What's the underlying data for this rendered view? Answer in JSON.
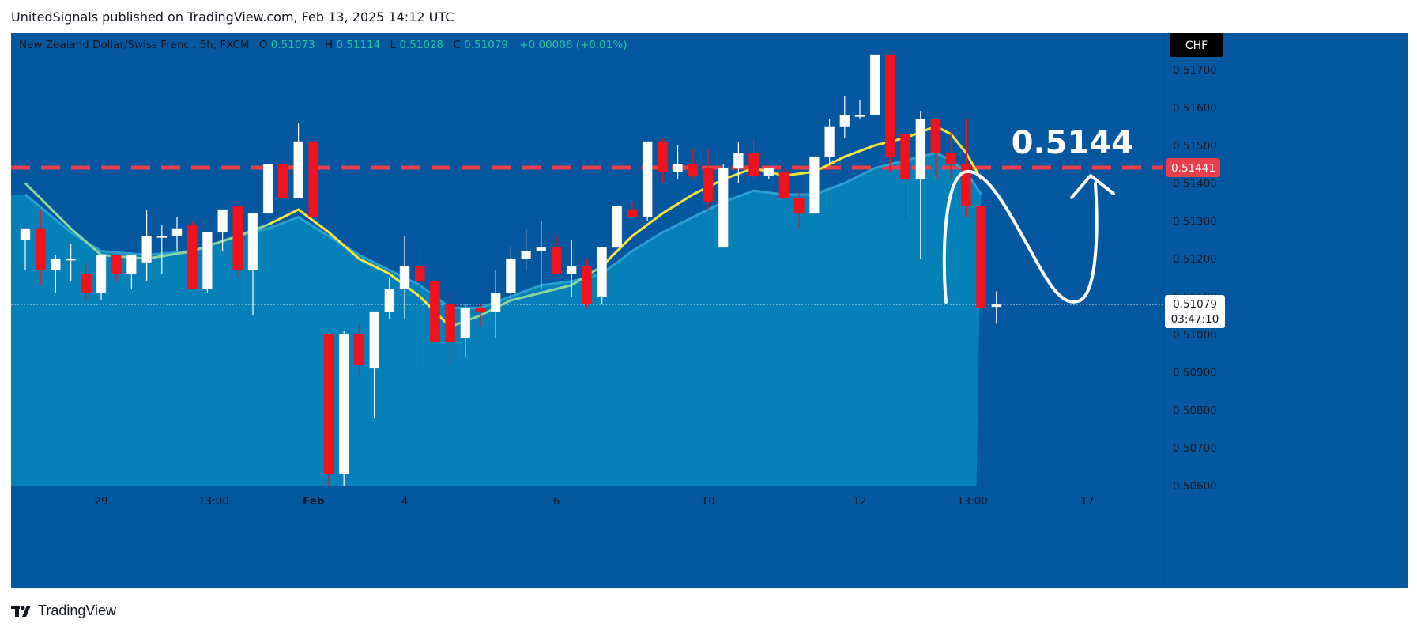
{
  "header": {
    "attribution": "UnitedSignals published on TradingView.com, Feb 13, 2025 14:12 UTC"
  },
  "chart": {
    "symbol_title": "New Zealand Dollar/Swiss Franc , 5h, FXCM",
    "ohlc": {
      "o_label": "O",
      "o_value": "0.51073",
      "h_label": "H",
      "h_value": "0.51114",
      "l_label": "L",
      "l_value": "0.51028",
      "c_label": "C",
      "c_value": "0.51079",
      "change": "+0.00006 (+0.01%)"
    },
    "currency_label": "CHF",
    "target_text": "0.5144",
    "level_label": "0.51441",
    "current_price_label": "0.51079",
    "countdown_label": "03:47:10",
    "colors": {
      "background": "#0558a0",
      "fill": "#0583bb",
      "up": "#ffffff",
      "down": "#f0121c",
      "ema_yellow": "#f5e63d",
      "ema_green": "#8bd6a0",
      "level": "#e8404a"
    }
  },
  "chart_data": {
    "type": "candlestick",
    "ylim": [
      0.506,
      0.5178
    ],
    "yticks": [
      0.506,
      0.507,
      0.508,
      0.509,
      0.51,
      0.511,
      0.512,
      0.513,
      0.514,
      0.515,
      0.516,
      0.517
    ],
    "ytick_labels": [
      "0.50600",
      "0.50700",
      "0.50800",
      "0.50900",
      "0.51000",
      "0.51100",
      "0.51200",
      "0.51300",
      "0.51400",
      "0.51500",
      "0.51600",
      "0.51700"
    ],
    "xticks": [
      {
        "index": 5,
        "label": "29"
      },
      {
        "index": 12,
        "label": "13:00"
      },
      {
        "index": 19,
        "label": "Feb"
      },
      {
        "index": 25,
        "label": "4"
      },
      {
        "index": 35,
        "label": "6"
      },
      {
        "index": 45,
        "label": "10"
      },
      {
        "index": 55,
        "label": "12"
      },
      {
        "index": 62,
        "label": "13:00"
      },
      {
        "index": 70,
        "label": "17"
      }
    ],
    "horizontal_level": 0.51441,
    "current_price": 0.51079,
    "candles": [
      {
        "o": 0.5125,
        "h": 0.5128,
        "l": 0.5117,
        "c": 0.5128
      },
      {
        "o": 0.5128,
        "h": 0.5133,
        "l": 0.5113,
        "c": 0.5117
      },
      {
        "o": 0.5117,
        "h": 0.5121,
        "l": 0.5111,
        "c": 0.512
      },
      {
        "o": 0.512,
        "h": 0.5124,
        "l": 0.5114,
        "c": 0.512
      },
      {
        "o": 0.5116,
        "h": 0.5119,
        "l": 0.5109,
        "c": 0.5111
      },
      {
        "o": 0.5111,
        "h": 0.5121,
        "l": 0.5109,
        "c": 0.5121
      },
      {
        "o": 0.5121,
        "h": 0.5121,
        "l": 0.5114,
        "c": 0.5116
      },
      {
        "o": 0.5116,
        "h": 0.5121,
        "l": 0.5112,
        "c": 0.5121
      },
      {
        "o": 0.5119,
        "h": 0.5133,
        "l": 0.5114,
        "c": 0.5126
      },
      {
        "o": 0.5126,
        "h": 0.5129,
        "l": 0.5116,
        "c": 0.5126
      },
      {
        "o": 0.5126,
        "h": 0.5131,
        "l": 0.5122,
        "c": 0.5128
      },
      {
        "o": 0.5129,
        "h": 0.513,
        "l": 0.5112,
        "c": 0.5112
      },
      {
        "o": 0.5112,
        "h": 0.5127,
        "l": 0.5111,
        "c": 0.5127
      },
      {
        "o": 0.5127,
        "h": 0.5133,
        "l": 0.5122,
        "c": 0.5133
      },
      {
        "o": 0.5134,
        "h": 0.5134,
        "l": 0.5115,
        "c": 0.5117
      },
      {
        "o": 0.5117,
        "h": 0.5132,
        "l": 0.5105,
        "c": 0.5132
      },
      {
        "o": 0.5132,
        "h": 0.5145,
        "l": 0.5132,
        "c": 0.5145
      },
      {
        "o": 0.5145,
        "h": 0.5146,
        "l": 0.5136,
        "c": 0.5136
      },
      {
        "o": 0.5136,
        "h": 0.5156,
        "l": 0.5136,
        "c": 0.5151
      },
      {
        "o": 0.5151,
        "h": 0.5151,
        "l": 0.5131,
        "c": 0.5131
      },
      {
        "o": 0.51,
        "h": 0.51,
        "l": 0.506,
        "c": 0.5063
      },
      {
        "o": 0.5063,
        "h": 0.5101,
        "l": 0.506,
        "c": 0.51
      },
      {
        "o": 0.51,
        "h": 0.5103,
        "l": 0.5089,
        "c": 0.5092
      },
      {
        "o": 0.5091,
        "h": 0.5106,
        "l": 0.5078,
        "c": 0.5106
      },
      {
        "o": 0.5106,
        "h": 0.5115,
        "l": 0.5104,
        "c": 0.5112
      },
      {
        "o": 0.5112,
        "h": 0.5126,
        "l": 0.5104,
        "c": 0.5118
      },
      {
        "o": 0.5118,
        "h": 0.5122,
        "l": 0.5091,
        "c": 0.5114
      },
      {
        "o": 0.5114,
        "h": 0.5114,
        "l": 0.5098,
        "c": 0.5098
      },
      {
        "o": 0.5108,
        "h": 0.5111,
        "l": 0.5092,
        "c": 0.5098
      },
      {
        "o": 0.5099,
        "h": 0.5108,
        "l": 0.5094,
        "c": 0.5107
      },
      {
        "o": 0.5107,
        "h": 0.5108,
        "l": 0.5102,
        "c": 0.5106
      },
      {
        "o": 0.5106,
        "h": 0.5117,
        "l": 0.5099,
        "c": 0.5111
      },
      {
        "o": 0.5111,
        "h": 0.5123,
        "l": 0.5109,
        "c": 0.512
      },
      {
        "o": 0.512,
        "h": 0.5128,
        "l": 0.5117,
        "c": 0.5122
      },
      {
        "o": 0.5122,
        "h": 0.513,
        "l": 0.5112,
        "c": 0.5123
      },
      {
        "o": 0.5123,
        "h": 0.5126,
        "l": 0.5116,
        "c": 0.5116
      },
      {
        "o": 0.5116,
        "h": 0.5125,
        "l": 0.511,
        "c": 0.5118
      },
      {
        "o": 0.5118,
        "h": 0.512,
        "l": 0.5107,
        "c": 0.5108
      },
      {
        "o": 0.511,
        "h": 0.5123,
        "l": 0.5108,
        "c": 0.5123
      },
      {
        "o": 0.5123,
        "h": 0.5134,
        "l": 0.5123,
        "c": 0.5134
      },
      {
        "o": 0.5133,
        "h": 0.5135,
        "l": 0.5131,
        "c": 0.5131
      },
      {
        "o": 0.5131,
        "h": 0.5151,
        "l": 0.513,
        "c": 0.5151
      },
      {
        "o": 0.5151,
        "h": 0.5152,
        "l": 0.514,
        "c": 0.5143
      },
      {
        "o": 0.5143,
        "h": 0.515,
        "l": 0.5141,
        "c": 0.5145
      },
      {
        "o": 0.5145,
        "h": 0.5149,
        "l": 0.5141,
        "c": 0.5142
      },
      {
        "o": 0.5144,
        "h": 0.5149,
        "l": 0.5133,
        "c": 0.5135
      },
      {
        "o": 0.5123,
        "h": 0.5145,
        "l": 0.5123,
        "c": 0.5144
      },
      {
        "o": 0.5144,
        "h": 0.5151,
        "l": 0.514,
        "c": 0.5148
      },
      {
        "o": 0.5148,
        "h": 0.5152,
        "l": 0.5141,
        "c": 0.5142
      },
      {
        "o": 0.5142,
        "h": 0.5144,
        "l": 0.5141,
        "c": 0.5144
      },
      {
        "o": 0.5143,
        "h": 0.5144,
        "l": 0.5136,
        "c": 0.5136
      },
      {
        "o": 0.5136,
        "h": 0.5138,
        "l": 0.5128,
        "c": 0.5132
      },
      {
        "o": 0.5132,
        "h": 0.5147,
        "l": 0.5132,
        "c": 0.5147
      },
      {
        "o": 0.5147,
        "h": 0.5157,
        "l": 0.5145,
        "c": 0.5155
      },
      {
        "o": 0.5155,
        "h": 0.5163,
        "l": 0.5152,
        "c": 0.5158
      },
      {
        "o": 0.5158,
        "h": 0.5162,
        "l": 0.5157,
        "c": 0.5158
      },
      {
        "o": 0.5158,
        "h": 0.5174,
        "l": 0.5158,
        "c": 0.5174
      },
      {
        "o": 0.5174,
        "h": 0.5174,
        "l": 0.5143,
        "c": 0.5147
      },
      {
        "o": 0.5153,
        "h": 0.5153,
        "l": 0.513,
        "c": 0.5141
      },
      {
        "o": 0.5141,
        "h": 0.5159,
        "l": 0.512,
        "c": 0.5157
      },
      {
        "o": 0.5157,
        "h": 0.5157,
        "l": 0.5141,
        "c": 0.5148
      },
      {
        "o": 0.5148,
        "h": 0.5154,
        "l": 0.5141,
        "c": 0.5145
      },
      {
        "o": 0.5145,
        "h": 0.5157,
        "l": 0.5131,
        "c": 0.5134
      },
      {
        "o": 0.5134,
        "h": 0.5134,
        "l": 0.5105,
        "c": 0.5107
      },
      {
        "o": 0.51073,
        "h": 0.51114,
        "l": 0.51028,
        "c": 0.51079
      }
    ],
    "ema_fast": [
      {
        "i": 0,
        "v": 0.514
      },
      {
        "i": 3,
        "v": 0.5128
      },
      {
        "i": 5,
        "v": 0.5121
      },
      {
        "i": 8,
        "v": 0.512
      },
      {
        "i": 11,
        "v": 0.5122
      },
      {
        "i": 14,
        "v": 0.5126
      },
      {
        "i": 16,
        "v": 0.5129
      },
      {
        "i": 18,
        "v": 0.5133
      },
      {
        "i": 20,
        "v": 0.5127
      },
      {
        "i": 22,
        "v": 0.512
      },
      {
        "i": 24,
        "v": 0.5116
      },
      {
        "i": 26,
        "v": 0.511
      },
      {
        "i": 28,
        "v": 0.5102
      },
      {
        "i": 30,
        "v": 0.5105
      },
      {
        "i": 32,
        "v": 0.5109
      },
      {
        "i": 34,
        "v": 0.5111
      },
      {
        "i": 36,
        "v": 0.5113
      },
      {
        "i": 38,
        "v": 0.5118
      },
      {
        "i": 40,
        "v": 0.5126
      },
      {
        "i": 42,
        "v": 0.5132
      },
      {
        "i": 44,
        "v": 0.5137
      },
      {
        "i": 46,
        "v": 0.5141
      },
      {
        "i": 48,
        "v": 0.5144
      },
      {
        "i": 50,
        "v": 0.5142
      },
      {
        "i": 52,
        "v": 0.5143
      },
      {
        "i": 54,
        "v": 0.5147
      },
      {
        "i": 56,
        "v": 0.515
      },
      {
        "i": 58,
        "v": 0.5152
      },
      {
        "i": 60,
        "v": 0.5155
      },
      {
        "i": 61,
        "v": 0.5153
      },
      {
        "i": 62,
        "v": 0.5148
      },
      {
        "i": 63,
        "v": 0.5141
      }
    ],
    "ema_slow": [
      {
        "i": 0,
        "v": 0.5137
      },
      {
        "i": 3,
        "v": 0.5127
      },
      {
        "i": 5,
        "v": 0.5122
      },
      {
        "i": 8,
        "v": 0.5121
      },
      {
        "i": 11,
        "v": 0.5122
      },
      {
        "i": 14,
        "v": 0.5126
      },
      {
        "i": 16,
        "v": 0.5128
      },
      {
        "i": 18,
        "v": 0.5131
      },
      {
        "i": 20,
        "v": 0.5126
      },
      {
        "i": 22,
        "v": 0.5121
      },
      {
        "i": 24,
        "v": 0.5117
      },
      {
        "i": 26,
        "v": 0.5113
      },
      {
        "i": 28,
        "v": 0.5107
      },
      {
        "i": 30,
        "v": 0.5107
      },
      {
        "i": 32,
        "v": 0.511
      },
      {
        "i": 34,
        "v": 0.5113
      },
      {
        "i": 36,
        "v": 0.5114
      },
      {
        "i": 38,
        "v": 0.5116
      },
      {
        "i": 40,
        "v": 0.5122
      },
      {
        "i": 42,
        "v": 0.5127
      },
      {
        "i": 44,
        "v": 0.5131
      },
      {
        "i": 46,
        "v": 0.5135
      },
      {
        "i": 48,
        "v": 0.5138
      },
      {
        "i": 50,
        "v": 0.5137
      },
      {
        "i": 52,
        "v": 0.5137
      },
      {
        "i": 54,
        "v": 0.514
      },
      {
        "i": 56,
        "v": 0.5144
      },
      {
        "i": 58,
        "v": 0.5146
      },
      {
        "i": 60,
        "v": 0.5148
      },
      {
        "i": 61,
        "v": 0.5146
      },
      {
        "i": 62,
        "v": 0.5143
      },
      {
        "i": 63,
        "v": 0.5137
      }
    ]
  },
  "footer": {
    "brand": "TradingView"
  }
}
